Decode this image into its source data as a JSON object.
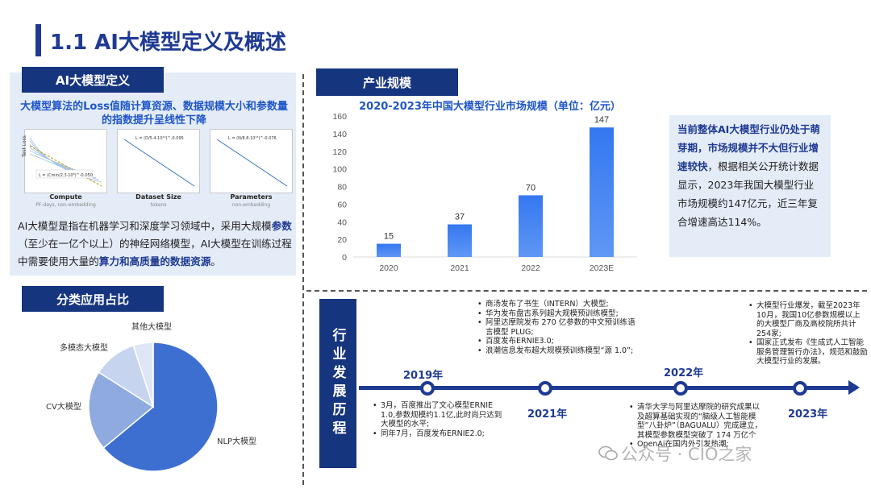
{
  "page": {
    "title": "1.1 AI大模型定义及概述"
  },
  "definition": {
    "header": "AI大模型定义",
    "subtitle": "大模型算法的Loss值随计算资源、数据规模大小和参数量的指数提升呈线性下降",
    "plots": [
      {
        "label": "Compute",
        "sublabel": "PF-days, non-embedding",
        "formula": "L = (Cmin/2.3·10⁸)^-0.050",
        "ylabel": "Test Loss"
      },
      {
        "label": "Dataset Size",
        "sublabel": "tokens",
        "formula": "L = (D/5.4·10¹³)^-0.095"
      },
      {
        "label": "Parameters",
        "sublabel": "non-embedding",
        "formula": "L = (N/8.8·10¹³)^-0.076"
      }
    ],
    "body_parts": {
      "p1": "AI大模型是指在机器学习和深度学习领域中，采用大规模",
      "p2": "参数",
      "p3": "（至少在一亿个以上）的神经网络模型，AI大模型在训练过程中需要使用大量的",
      "p4": "算力和高质量的数据资源",
      "p5": "。"
    }
  },
  "classification": {
    "header": "分类应用占比",
    "chart_data": {
      "type": "pie",
      "categories": [
        "NLP大模型",
        "CV大模型",
        "多模态大模型",
        "其他大模型"
      ],
      "values": [
        64,
        20,
        11,
        5
      ],
      "colors": [
        "#3d6fd1",
        "#8eaadf",
        "#c6d4ef",
        "#dfe6f5"
      ]
    }
  },
  "market": {
    "header": "产业规模",
    "chart_data": {
      "type": "bar",
      "title": "2020-2023年中国大模型行业市场规模（单位：亿元）",
      "categories": [
        "2020",
        "2021",
        "2022",
        "2023E"
      ],
      "values": [
        15,
        37,
        70,
        147
      ],
      "ylim": [
        0,
        160
      ],
      "yticks": [
        0,
        20,
        40,
        60,
        80,
        100,
        120,
        140,
        160
      ],
      "color": "#3477f0"
    },
    "summary_parts": {
      "b1": "当前整体AI大模型行业仍处于萌芽期，市场规模并不大但行业增速较快",
      "t1": "，根据相关公开统计数据显示，2023年我国大模型行业市场规模约147亿元，近三年复合增速高达114%。"
    }
  },
  "history": {
    "header": "行业发展历程",
    "years": [
      "2019年",
      "2021年",
      "2022年",
      "2023年"
    ],
    "events_2019": [
      "3月，百度推出了文心模型ERNIE 1.0,参数规模约1.1亿,此时尚只达到大模型的水平;",
      "同年7月，百度发布ERNIE2.0;"
    ],
    "events_2021": [
      "商汤发布了书生（INTERN）大模型;",
      "华为发布盘古系列超大规模预训练模型;",
      "阿里达摩院发布 270 亿参数的中文预训练语言模型 PLUG;",
      "百度发布ERNIE3.0;",
      "浪潮信息发布超大规模预训练模型“源 1.0”;"
    ],
    "events_2022": [
      "清华大学与阿里达摩院的研究成果以及超算基础实现的“脑级人工智能模型”八卦炉”（BAGUALU）完成建立，其模型参数模型突破了 174 万亿个",
      "OpenAi在国内外引发热潮;"
    ],
    "events_2023": [
      "大模型行业爆发，截至2023年10月，我国10亿参数规模以上的大模型厂商及高校院所共计254家;",
      "国家正式发布《生成式人工智能服务管理暂行办法》，规范和鼓励大模型行业的发展。"
    ]
  },
  "watermark": {
    "text": "公众号 · CIO之家"
  }
}
